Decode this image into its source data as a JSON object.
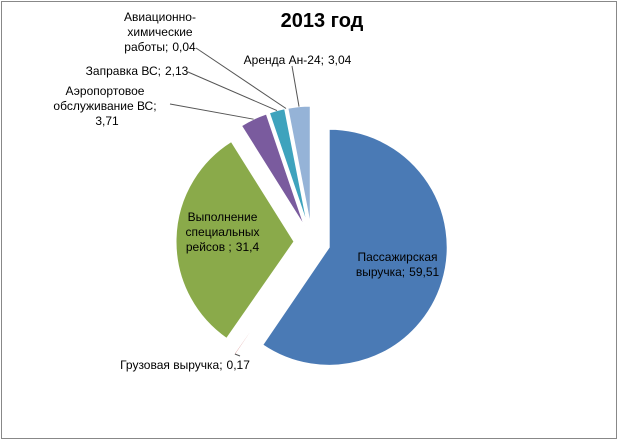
{
  "chart_data": {
    "type": "pie",
    "title": "2013 год",
    "categories": [
      "Пассажирская выручка;",
      "Грузовая выручка;",
      "Выполнение специальных рейсов ;",
      "Аэропортовое обслуживание ВС;",
      "Заправка ВС;",
      "Авиационно-химические работы;",
      "Аренда Ан-24;"
    ],
    "values": [
      59.51,
      0.17,
      31.4,
      3.71,
      2.13,
      0.04,
      3.04
    ],
    "value_labels": [
      "59,51",
      "0,17",
      "31,4",
      "3,71",
      "2,13",
      "0,04",
      "3,04"
    ],
    "colors": [
      "#4a7ab5",
      "#c0504d",
      "#8aaa4a",
      "#7a5b9e",
      "#3ea3bd",
      "#2c4d75",
      "#95b3d7"
    ]
  }
}
